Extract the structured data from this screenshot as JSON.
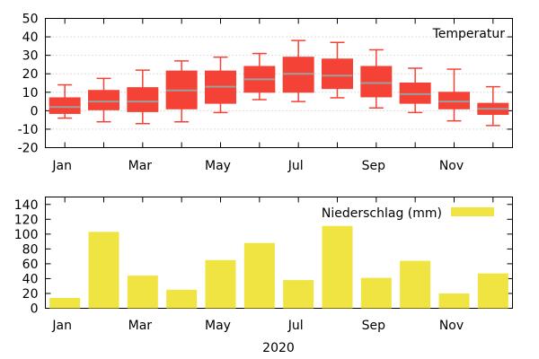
{
  "chart_data": [
    {
      "type": "box",
      "legend": "Temperatur",
      "legend_position": "top-right",
      "grid": "horizontal-dotted",
      "ylim": [
        -20,
        50
      ],
      "yticks": [
        -20,
        -10,
        0,
        10,
        20,
        30,
        40,
        50
      ],
      "xtick_labels": [
        "Jan",
        "Mar",
        "May",
        "Jul",
        "Sep",
        "Nov"
      ],
      "months": [
        "Jan",
        "Feb",
        "Mar",
        "Apr",
        "May",
        "Jun",
        "Jul",
        "Aug",
        "Sep",
        "Oct",
        "Nov",
        "Dec"
      ],
      "box_color": "#f44336",
      "median_color": "#9e9e9e",
      "series": [
        {
          "month": "Jan",
          "min": -4,
          "q1": -1.5,
          "median": 2,
          "q3": 7,
          "max": 14
        },
        {
          "month": "Feb",
          "min": -6,
          "q1": 0.5,
          "median": 5,
          "q3": 11,
          "max": 17.5
        },
        {
          "month": "Mar",
          "min": -7,
          "q1": -0.5,
          "median": 5,
          "q3": 12.5,
          "max": 22
        },
        {
          "month": "Apr",
          "min": -6,
          "q1": 1,
          "median": 11,
          "q3": 21.5,
          "max": 27
        },
        {
          "month": "May",
          "min": -1,
          "q1": 4,
          "median": 13,
          "q3": 21.5,
          "max": 29
        },
        {
          "month": "Jun",
          "min": 6,
          "q1": 10,
          "median": 17,
          "q3": 24,
          "max": 31
        },
        {
          "month": "Jul",
          "min": 5,
          "q1": 10,
          "median": 20,
          "q3": 29,
          "max": 38
        },
        {
          "month": "Aug",
          "min": 7,
          "q1": 12,
          "median": 19,
          "q3": 28,
          "max": 37
        },
        {
          "month": "Sep",
          "min": 1.5,
          "q1": 7.5,
          "median": 15,
          "q3": 24,
          "max": 33
        },
        {
          "month": "Oct",
          "min": -1,
          "q1": 4,
          "median": 9,
          "q3": 15,
          "max": 23
        },
        {
          "month": "Nov",
          "min": -5.5,
          "q1": 1,
          "median": 5,
          "q3": 10,
          "max": 22.5
        },
        {
          "month": "Dec",
          "min": -8,
          "q1": -2,
          "median": 1,
          "q3": 4,
          "max": 13
        }
      ]
    },
    {
      "type": "bar",
      "legend": "Niederschlag (mm)",
      "legend_position": "top-right",
      "xlabel": "2020",
      "ylim": [
        0,
        150
      ],
      "yticks": [
        0,
        20,
        40,
        60,
        80,
        100,
        120,
        140
      ],
      "xtick_labels": [
        "Jan",
        "Mar",
        "May",
        "Jul",
        "Sep",
        "Nov"
      ],
      "months": [
        "Jan",
        "Feb",
        "Mar",
        "Apr",
        "May",
        "Jun",
        "Jul",
        "Aug",
        "Sep",
        "Oct",
        "Nov",
        "Dec"
      ],
      "bar_color": "#f0e442",
      "values": [
        14,
        103,
        44,
        25,
        65,
        88,
        38,
        111,
        41,
        64,
        20,
        47
      ]
    }
  ]
}
